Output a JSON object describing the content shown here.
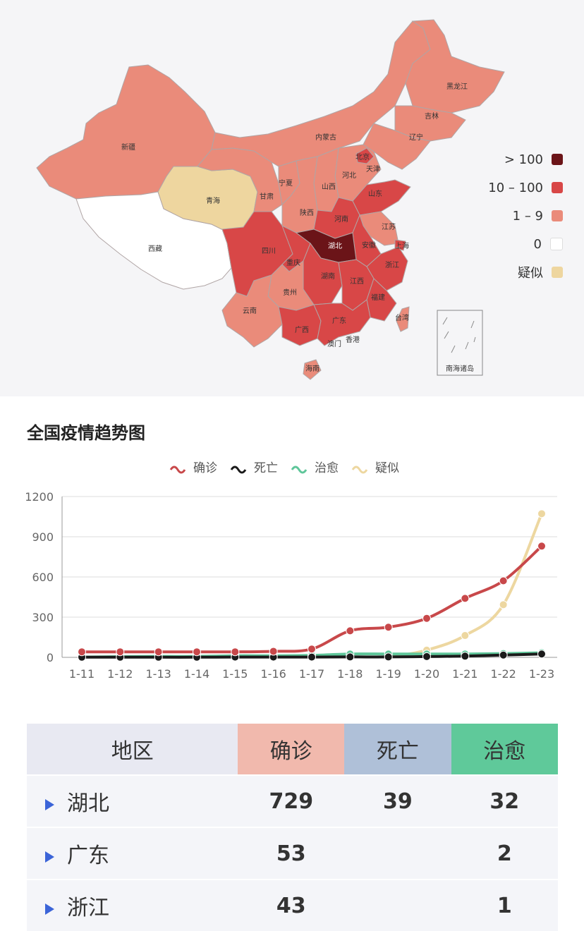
{
  "map": {
    "provinces": [
      {
        "name": "新疆",
        "level": "1-9"
      },
      {
        "name": "西藏",
        "level": "0"
      },
      {
        "name": "青海",
        "level": "suspected"
      },
      {
        "name": "甘肃",
        "level": "1-9"
      },
      {
        "name": "内蒙古",
        "level": "1-9"
      },
      {
        "name": "黑龙江",
        "level": "1-9"
      },
      {
        "name": "吉林",
        "level": "1-9"
      },
      {
        "name": "辽宁",
        "level": "1-9"
      },
      {
        "name": "北京",
        "level": "10-100"
      },
      {
        "name": "天津",
        "level": "1-9"
      },
      {
        "name": "河北",
        "level": "1-9"
      },
      {
        "name": "山西",
        "level": "1-9"
      },
      {
        "name": "宁夏",
        "level": "1-9"
      },
      {
        "name": "陕西",
        "level": "1-9"
      },
      {
        "name": "山东",
        "level": "10-100"
      },
      {
        "name": "河南",
        "level": "10-100"
      },
      {
        "name": "江苏",
        "level": "1-9"
      },
      {
        "name": "安徽",
        "level": "10-100"
      },
      {
        "name": "上海",
        "level": "10-100"
      },
      {
        "name": "四川",
        "level": "10-100"
      },
      {
        "name": "重庆",
        "level": "10-100"
      },
      {
        "name": "湖北",
        "level": ">100"
      },
      {
        "name": "浙江",
        "level": "10-100"
      },
      {
        "name": "湖南",
        "level": "10-100"
      },
      {
        "name": "江西",
        "level": "10-100"
      },
      {
        "name": "贵州",
        "level": "1-9"
      },
      {
        "name": "云南",
        "level": "1-9"
      },
      {
        "name": "福建",
        "level": "10-100"
      },
      {
        "name": "台湾",
        "level": "1-9"
      },
      {
        "name": "广西",
        "level": "10-100"
      },
      {
        "name": "广东",
        "level": "10-100"
      },
      {
        "name": "香港",
        "level": "1-9"
      },
      {
        "name": "澳门",
        "level": "1-9"
      },
      {
        "name": "海南",
        "level": "1-9"
      }
    ],
    "inset_label": "南海诸岛"
  },
  "legend": [
    {
      "label": "> 100",
      "color": "#6b1418"
    },
    {
      "label": "10 – 100",
      "color": "#d84747"
    },
    {
      "label": "1 – 9",
      "color": "#ea8b7a"
    },
    {
      "label": "0",
      "color": "#ffffff"
    },
    {
      "label": "疑似",
      "color": "#eed69f"
    }
  ],
  "trend": {
    "title": "全国疫情趋势图"
  },
  "chart_data": {
    "type": "line",
    "title": "全国疫情趋势图",
    "categories": [
      "1-11",
      "1-12",
      "1-13",
      "1-14",
      "1-15",
      "1-16",
      "1-17",
      "1-18",
      "1-19",
      "1-20",
      "1-21",
      "1-22",
      "1-23"
    ],
    "ylim": [
      0,
      1200
    ],
    "yticks": [
      0,
      300,
      600,
      900,
      1200
    ],
    "grid": true,
    "legend_position": "top-center",
    "series": [
      {
        "name": "确诊",
        "color": "#c8484a",
        "values": [
          41,
          41,
          41,
          41,
          41,
          45,
          62,
          198,
          225,
          291,
          440,
          571,
          830
        ]
      },
      {
        "name": "死亡",
        "color": "#1a1a1a",
        "values": [
          1,
          1,
          1,
          1,
          2,
          2,
          2,
          3,
          3,
          6,
          9,
          17,
          25
        ]
      },
      {
        "name": "治愈",
        "color": "#5fc69a",
        "values": [
          2,
          5,
          7,
          7,
          12,
          12,
          15,
          25,
          25,
          25,
          25,
          28,
          34
        ]
      },
      {
        "name": "疑似",
        "color": "#edd7a0",
        "values": [
          null,
          null,
          null,
          null,
          null,
          null,
          null,
          null,
          0,
          54,
          163,
          393,
          1072
        ]
      }
    ]
  },
  "table": {
    "headers": [
      {
        "label": "地区",
        "bg": "#e8e9f2"
      },
      {
        "label": "确诊",
        "bg": "#f1b9ad"
      },
      {
        "label": "死亡",
        "bg": "#afc0d8"
      },
      {
        "label": "治愈",
        "bg": "#5fc99a"
      }
    ],
    "rows": [
      {
        "region": "湖北",
        "confirmed": "729",
        "deaths": "39",
        "cured": "32"
      },
      {
        "region": "广东",
        "confirmed": "53",
        "deaths": "",
        "cured": "2"
      },
      {
        "region": "浙江",
        "confirmed": "43",
        "deaths": "",
        "cured": "1"
      }
    ]
  }
}
